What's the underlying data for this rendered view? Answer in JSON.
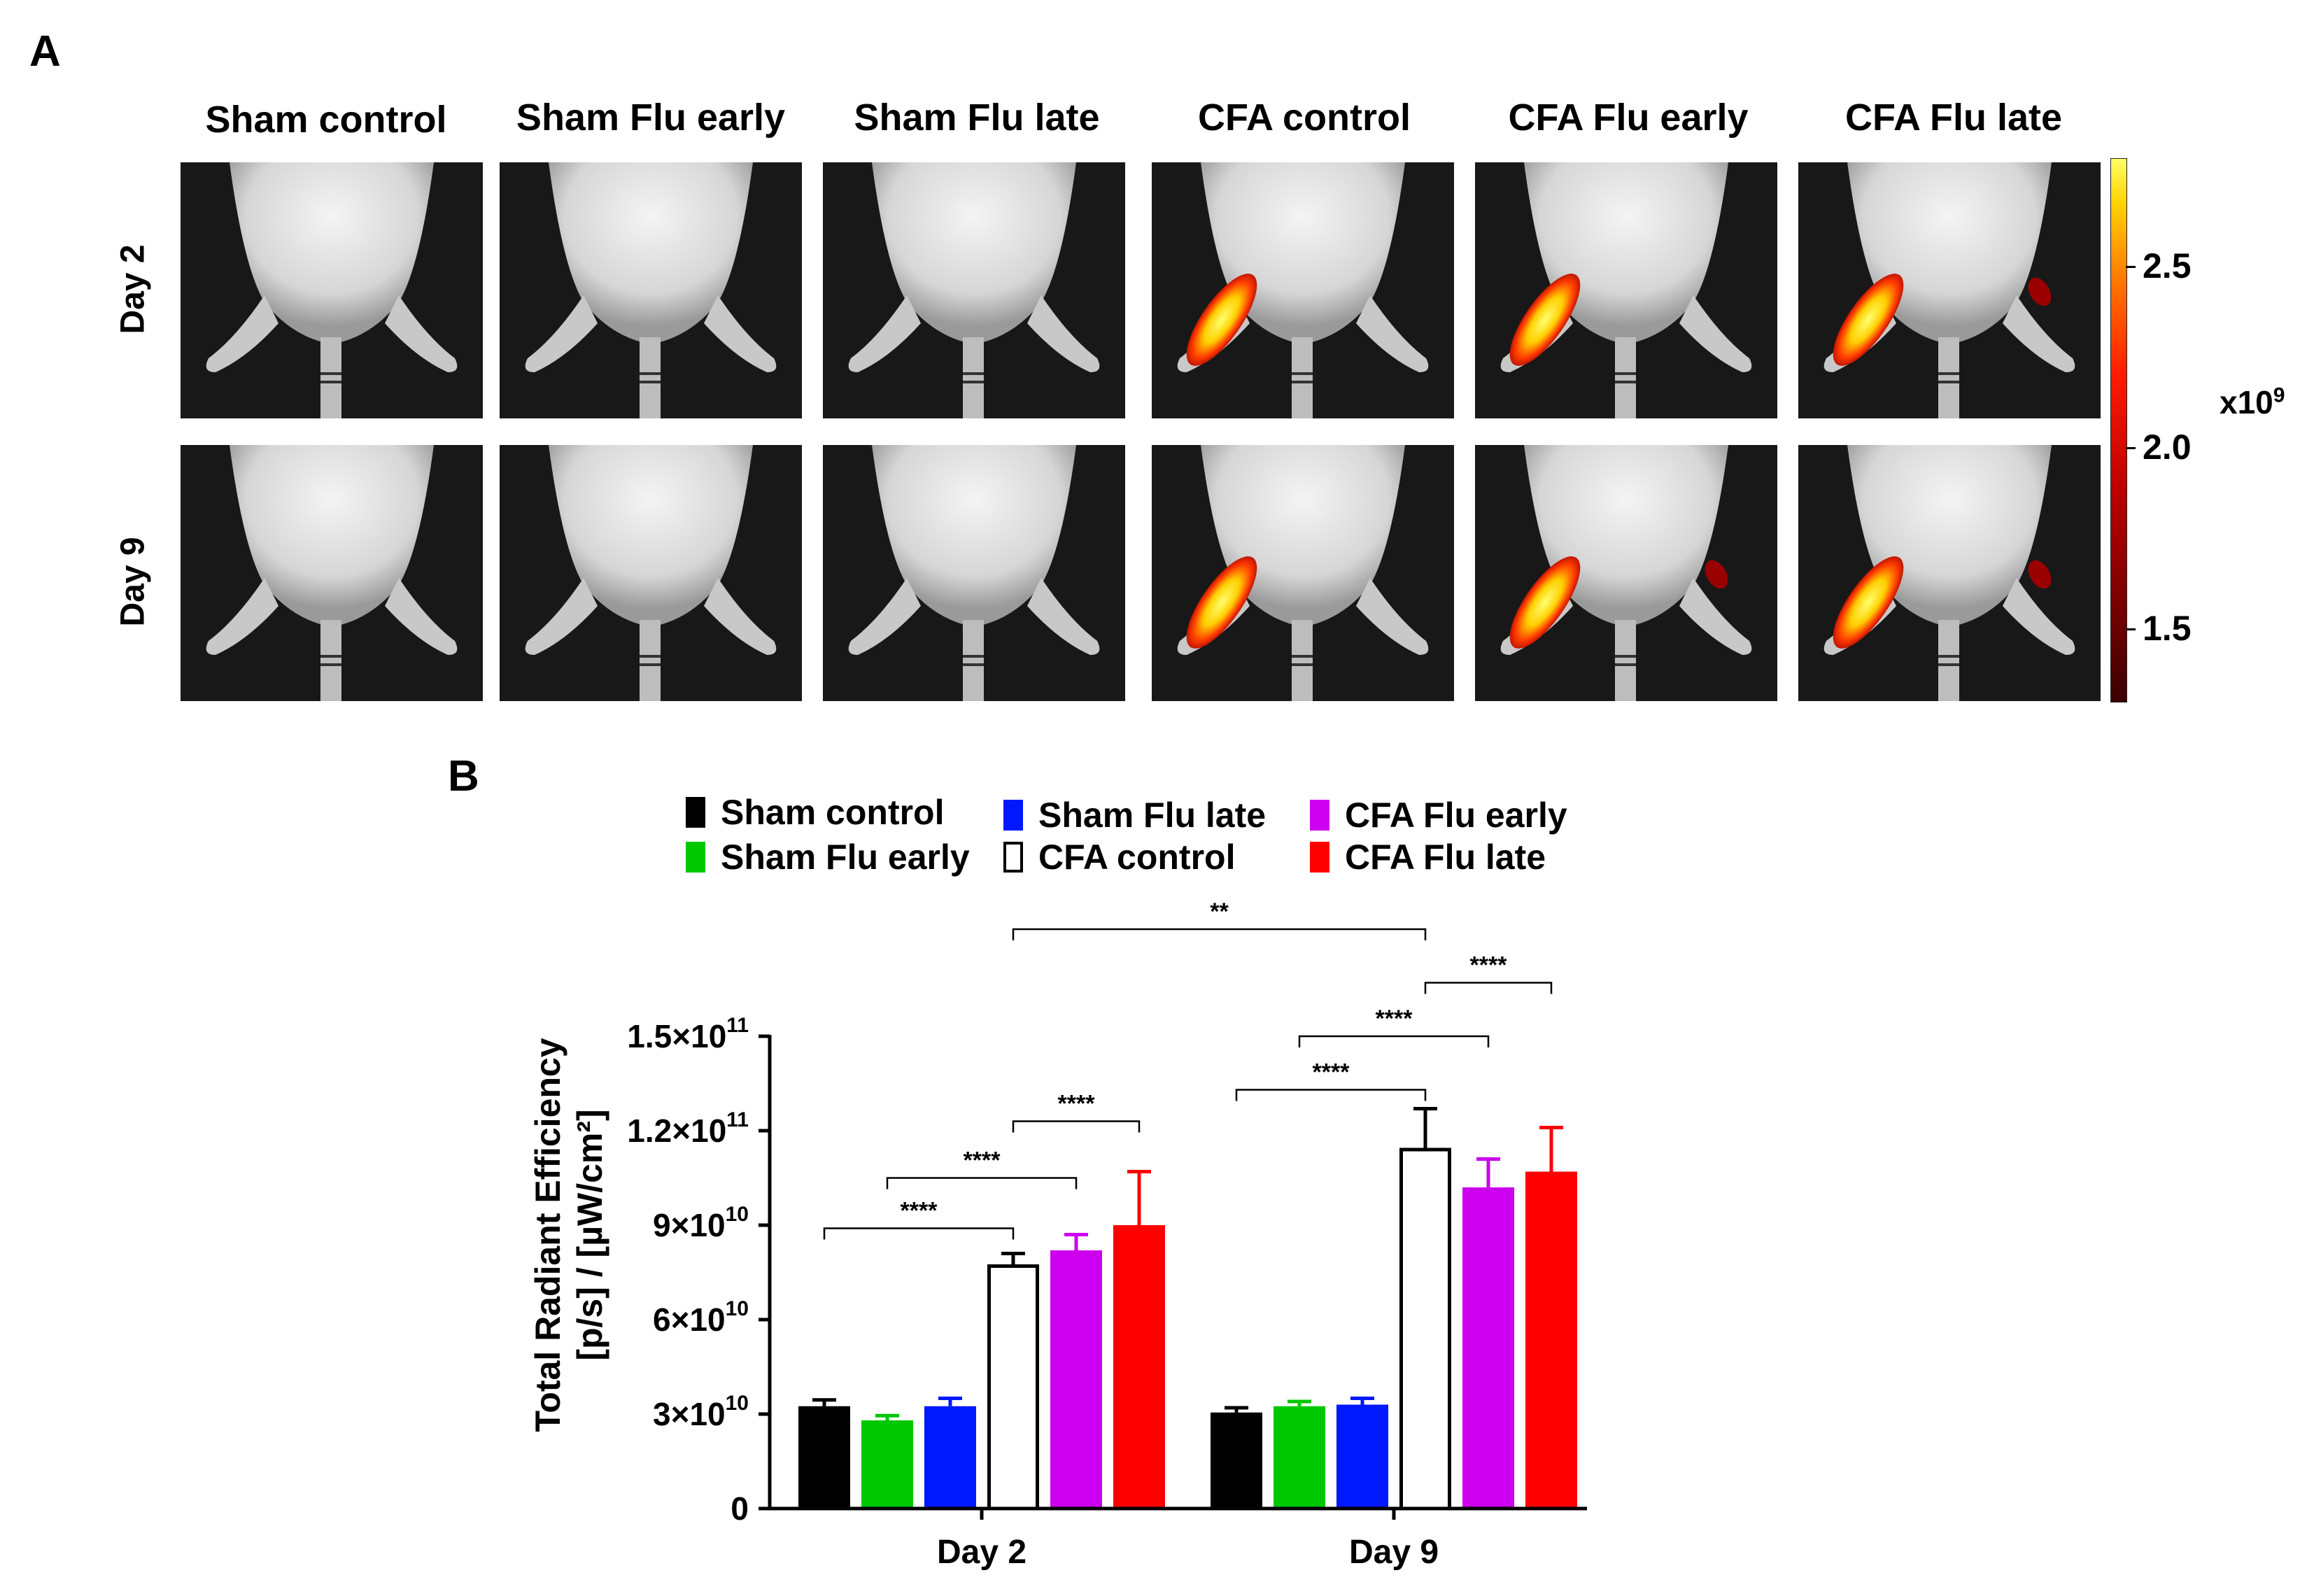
{
  "panel_a": {
    "letter": "A",
    "columns": [
      "Sham control",
      "Sham Flu early",
      "Sham Flu late",
      "CFA control",
      "CFA Flu early",
      "CFA Flu late"
    ],
    "rows": [
      "Day 2",
      "Day 9"
    ],
    "colorbar": {
      "ticks": [
        "2.5",
        "2.0",
        "1.5"
      ],
      "tick_values": [
        2.5,
        2.0,
        1.5
      ],
      "range": [
        1.3,
        2.8
      ],
      "exponent_label": "x10",
      "exponent_sup": "9"
    }
  },
  "panel_b": {
    "letter": "B",
    "legend": [
      {
        "label": "Sham control",
        "color": "#000000",
        "hollow": false
      },
      {
        "label": "Sham Flu early",
        "color": "#00c800",
        "hollow": false
      },
      {
        "label": "Sham Flu late",
        "color": "#0018ff",
        "hollow": false
      },
      {
        "label": "CFA control",
        "color": "#000000",
        "hollow": true
      },
      {
        "label": "CFA Flu early",
        "color": "#cc00ee",
        "hollow": false
      },
      {
        "label": "CFA Flu late",
        "color": "#ff0000",
        "hollow": false
      }
    ]
  },
  "chart_data": {
    "type": "bar",
    "title": "",
    "xlabel": "",
    "ylabel": "Total Radiant Efficiency [p/s] / [µW/cm²]",
    "ylabel_lines": [
      "Total Radiant Efficiency",
      "[p/s] / [µW/cm²]"
    ],
    "categories": [
      "Day 2",
      "Day 9"
    ],
    "ylim": [
      0,
      150000000000
    ],
    "y_ticks": [
      {
        "value": 0,
        "base": "0",
        "exp": ""
      },
      {
        "value": 30000000000,
        "base": "3×10",
        "exp": "10"
      },
      {
        "value": 60000000000,
        "base": "6×10",
        "exp": "10"
      },
      {
        "value": 90000000000,
        "base": "9×10",
        "exp": "10"
      },
      {
        "value": 120000000000,
        "base": "1.2×10",
        "exp": "11"
      },
      {
        "value": 150000000000,
        "base": "1.5×10",
        "exp": "11"
      }
    ],
    "series": [
      {
        "name": "Sham control",
        "color": "#000000",
        "hollow": false,
        "values": [
          32500000000,
          30500000000
        ],
        "errors": [
          2000000000,
          1500000000
        ]
      },
      {
        "name": "Sham Flu early",
        "color": "#00c800",
        "hollow": false,
        "values": [
          28000000000,
          32500000000
        ],
        "errors": [
          1500000000,
          1500000000
        ]
      },
      {
        "name": "Sham Flu late",
        "color": "#0018ff",
        "hollow": false,
        "values": [
          32500000000,
          33000000000
        ],
        "errors": [
          2500000000,
          2000000000
        ]
      },
      {
        "name": "CFA control",
        "color": "#000000",
        "hollow": true,
        "values": [
          77000000000,
          114000000000
        ],
        "errors": [
          4000000000,
          13000000000
        ]
      },
      {
        "name": "CFA Flu early",
        "color": "#cc00ee",
        "hollow": false,
        "values": [
          82000000000,
          102000000000
        ],
        "errors": [
          5000000000,
          9000000000
        ]
      },
      {
        "name": "CFA Flu late",
        "color": "#ff0000",
        "hollow": false,
        "values": [
          90000000000,
          107000000000
        ],
        "errors": [
          17000000000,
          14000000000
        ]
      }
    ],
    "significance": [
      {
        "group1": 0,
        "series1": 0,
        "group2": 0,
        "series2": 3,
        "label": "****",
        "y": 89000000000
      },
      {
        "group1": 0,
        "series1": 1,
        "group2": 0,
        "series2": 4,
        "label": "****",
        "y": 105000000000
      },
      {
        "group1": 0,
        "series1": 3,
        "group2": 0,
        "series2": 5,
        "label": "****",
        "y": 123000000000
      },
      {
        "group1": 1,
        "series1": 0,
        "group2": 1,
        "series2": 3,
        "label": "****",
        "y": 133000000000
      },
      {
        "group1": 1,
        "series1": 1,
        "group2": 1,
        "series2": 4,
        "label": "****",
        "y": 150000000000
      },
      {
        "group1": 1,
        "series1": 3,
        "group2": 1,
        "series2": 5,
        "label": "****",
        "y": 167000000000
      },
      {
        "group1": 0,
        "series1": 3,
        "group2": 1,
        "series2": 3,
        "label": "**",
        "y": 184000000000
      }
    ]
  }
}
